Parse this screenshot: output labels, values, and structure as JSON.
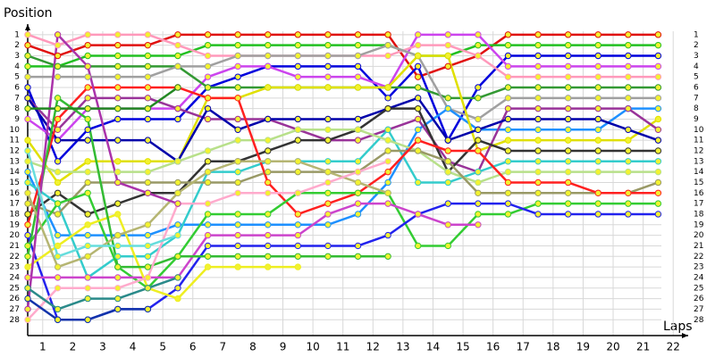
{
  "chart_data": {
    "type": "line",
    "y_label": "Position",
    "x_label": "Laps",
    "x": [
      0,
      1,
      2,
      3,
      4,
      5,
      6,
      7,
      8,
      9,
      10,
      11,
      12,
      13,
      14,
      15,
      16,
      17,
      18,
      19,
      20,
      21
    ],
    "xlim": [
      0,
      22
    ],
    "xticks": [
      {
        "value": 0.5,
        "label": "1"
      },
      {
        "value": 1.5,
        "label": "2"
      },
      {
        "value": 2.5,
        "label": "3"
      },
      {
        "value": 3.5,
        "label": "4"
      },
      {
        "value": 4.5,
        "label": "5"
      },
      {
        "value": 5.5,
        "label": "6"
      },
      {
        "value": 6.5,
        "label": "7"
      },
      {
        "value": 7.5,
        "label": "8"
      },
      {
        "value": 8.5,
        "label": "9"
      },
      {
        "value": 9.5,
        "label": "10"
      },
      {
        "value": 10.5,
        "label": "11"
      },
      {
        "value": 11.5,
        "label": "12"
      },
      {
        "value": 12.5,
        "label": "13"
      },
      {
        "value": 13.5,
        "label": "14"
      },
      {
        "value": 14.5,
        "label": "15"
      },
      {
        "value": 15.5,
        "label": "16"
      },
      {
        "value": 16.5,
        "label": "17"
      },
      {
        "value": 17.5,
        "label": "18"
      },
      {
        "value": 18.5,
        "label": "19"
      },
      {
        "value": 19.5,
        "label": "20"
      },
      {
        "value": 20.5,
        "label": "21"
      },
      {
        "value": 21.5,
        "label": "22"
      }
    ],
    "ylim": [
      29.5,
      0
    ],
    "yticks": [
      1,
      2,
      3,
      4,
      5,
      6,
      7,
      8,
      9,
      10,
      11,
      12,
      13,
      14,
      15,
      16,
      17,
      18,
      19,
      20,
      21,
      22,
      23,
      24,
      25,
      26,
      27,
      28
    ],
    "grid": true,
    "series": [
      {
        "color": "#e01010",
        "values": [
          2,
          3,
          2,
          2,
          2,
          1,
          1,
          1,
          1,
          1,
          1,
          1,
          1,
          5,
          4,
          3,
          1,
          1,
          1,
          1,
          1,
          1
        ]
      },
      {
        "color": "#22c022",
        "values": [
          4,
          4,
          3,
          3,
          3,
          3,
          2,
          2,
          2,
          2,
          2,
          2,
          2,
          3,
          3,
          2,
          2,
          2,
          2,
          2,
          2,
          2
        ]
      },
      {
        "color": "#0000dd",
        "values": [
          6,
          13,
          10,
          9,
          9,
          9,
          6,
          5,
          4,
          4,
          4,
          4,
          7,
          4,
          11,
          6,
          3,
          3,
          3,
          3,
          3,
          3
        ]
      },
      {
        "color": "#cc44ee",
        "values": [
          9,
          11,
          8,
          8,
          8,
          8,
          5,
          4,
          4,
          5,
          5,
          5,
          6,
          1,
          1,
          1,
          4,
          4,
          4,
          4,
          4,
          4
        ]
      },
      {
        "color": "#ff99bb",
        "values": [
          1,
          2,
          1,
          1,
          1,
          2,
          3,
          3,
          3,
          3,
          3,
          3,
          3,
          2,
          2,
          3,
          5,
          5,
          5,
          5,
          5,
          5
        ]
      },
      {
        "color": "#339933",
        "values": [
          3,
          4,
          4,
          4,
          4,
          4,
          6,
          6,
          6,
          6,
          6,
          6,
          6,
          6,
          7,
          7,
          6,
          6,
          6,
          6,
          6,
          6
        ]
      },
      {
        "color": "#a0a0a0",
        "values": [
          5,
          5,
          5,
          5,
          5,
          4,
          4,
          3,
          3,
          3,
          3,
          3,
          2,
          3,
          8,
          9,
          7,
          7,
          7,
          7,
          7,
          7
        ]
      },
      {
        "color": "#1e90ff",
        "values": [
          14,
          20,
          20,
          20,
          20,
          19,
          19,
          19,
          19,
          19,
          19,
          18,
          15,
          10,
          8,
          10,
          10,
          10,
          10,
          10,
          8,
          8
        ]
      },
      {
        "color": "#e0e000",
        "values": [
          11,
          15,
          13,
          13,
          13,
          13,
          7,
          7,
          6,
          6,
          6,
          6,
          6,
          3,
          3,
          12,
          11,
          11,
          11,
          11,
          11,
          9
        ]
      },
      {
        "color": "#993399",
        "values": [
          7,
          10,
          7,
          7,
          7,
          8,
          9,
          9,
          9,
          10,
          11,
          11,
          10,
          9,
          13,
          14,
          8,
          8,
          8,
          8,
          8,
          10
        ]
      },
      {
        "color": "#0000aa",
        "values": [
          7,
          11,
          11,
          11,
          11,
          13,
          8,
          10,
          9,
          9,
          9,
          9,
          8,
          7,
          11,
          10,
          9,
          9,
          9,
          9,
          10,
          11
        ]
      },
      {
        "color": "#333333",
        "values": [
          18,
          16,
          18,
          17,
          16,
          16,
          13,
          13,
          12,
          11,
          11,
          10,
          8,
          8,
          14,
          11,
          12,
          12,
          12,
          12,
          12,
          12
        ]
      },
      {
        "color": "#33cccc",
        "values": [
          15,
          17,
          24,
          22,
          22,
          20,
          14,
          14,
          13,
          13,
          13,
          13,
          10,
          15,
          15,
          14,
          13,
          13,
          13,
          13,
          13,
          13
        ]
      },
      {
        "color": "#b8e08a",
        "values": [
          13,
          14,
          14,
          14,
          14,
          13,
          12,
          11,
          11,
          10,
          10,
          10,
          11,
          12,
          14,
          15,
          14,
          14,
          14,
          14,
          14,
          14
        ]
      },
      {
        "color": "#999966",
        "values": [
          17,
          18,
          15,
          15,
          15,
          15,
          15,
          15,
          14,
          14,
          14,
          14,
          12,
          12,
          13,
          16,
          16,
          16,
          16,
          16,
          16,
          15
        ]
      },
      {
        "color": "#ff2020",
        "values": [
          19,
          9,
          6,
          6,
          6,
          6,
          7,
          7,
          15,
          18,
          17,
          16,
          14,
          11,
          12,
          12,
          15,
          15,
          15,
          16,
          16,
          16
        ]
      },
      {
        "color": "#33cc33",
        "values": [
          21,
          17,
          16,
          23,
          25,
          22,
          18,
          18,
          18,
          16,
          16,
          16,
          16,
          21,
          21,
          18,
          18,
          17,
          17,
          17,
          17,
          17
        ]
      },
      {
        "color": "#2222ee",
        "values": [
          20,
          28,
          28,
          27,
          27,
          25,
          21,
          21,
          21,
          21,
          21,
          21,
          20,
          18,
          17,
          17,
          17,
          18,
          18,
          18,
          18,
          18
        ]
      },
      {
        "color": "#cc44cc",
        "values": [
          24,
          24,
          24,
          24,
          24,
          24,
          20,
          20,
          20,
          20,
          18,
          17,
          17,
          18,
          19,
          19,
          null,
          null,
          null,
          null,
          null,
          null
        ]
      },
      {
        "color": "#eeee22",
        "values": [
          23,
          21,
          19,
          18,
          25,
          26,
          23,
          23,
          23,
          23,
          null,
          null,
          null,
          null,
          null,
          null,
          null,
          null,
          null,
          null,
          null,
          null
        ]
      },
      {
        "color": "#33bb33",
        "values": [
          22,
          7,
          9,
          23,
          23,
          22,
          22,
          22,
          22,
          22,
          22,
          22,
          22,
          null,
          null,
          null,
          null,
          null,
          null,
          null,
          null,
          null
        ]
      },
      {
        "color": "#b5b572",
        "values": [
          16,
          23,
          22,
          20,
          19,
          16,
          14,
          13,
          13,
          13,
          14,
          15,
          16,
          null,
          null,
          null,
          null,
          null,
          null,
          null,
          null,
          null
        ]
      },
      {
        "color": "#ffaacc",
        "values": [
          28,
          25,
          25,
          25,
          24,
          17,
          17,
          16,
          16,
          16,
          15,
          14,
          13,
          null,
          null,
          null,
          null,
          null,
          null,
          null,
          null,
          null
        ]
      },
      {
        "color": "#1133aa",
        "values": [
          26,
          28,
          28,
          27,
          27,
          null,
          null,
          null,
          null,
          null,
          null,
          null,
          null,
          null,
          null,
          null,
          null,
          null,
          null,
          null,
          null,
          null
        ]
      },
      {
        "color": "#aa33aa",
        "values": [
          27,
          1,
          4,
          15,
          16,
          17,
          null,
          null,
          null,
          null,
          null,
          null,
          null,
          null,
          null,
          null,
          null,
          null,
          null,
          null,
          null,
          null
        ]
      },
      {
        "color": "#66dddd",
        "values": [
          12,
          22,
          21,
          21,
          21,
          20,
          null,
          null,
          null,
          null,
          null,
          null,
          null,
          null,
          null,
          null,
          null,
          null,
          null,
          null,
          null,
          null
        ]
      },
      {
        "color": "#228822",
        "values": [
          8,
          8,
          8,
          8,
          8,
          6,
          null,
          null,
          null,
          null,
          null,
          null,
          null,
          null,
          null,
          null,
          null,
          null,
          null,
          null,
          null,
          null
        ]
      },
      {
        "color": "#2a8a8a",
        "values": [
          25,
          27,
          26,
          26,
          25,
          24,
          null,
          null,
          null,
          null,
          null,
          null,
          null,
          null,
          null,
          null,
          null,
          null,
          null,
          null,
          null,
          null
        ]
      }
    ]
  }
}
